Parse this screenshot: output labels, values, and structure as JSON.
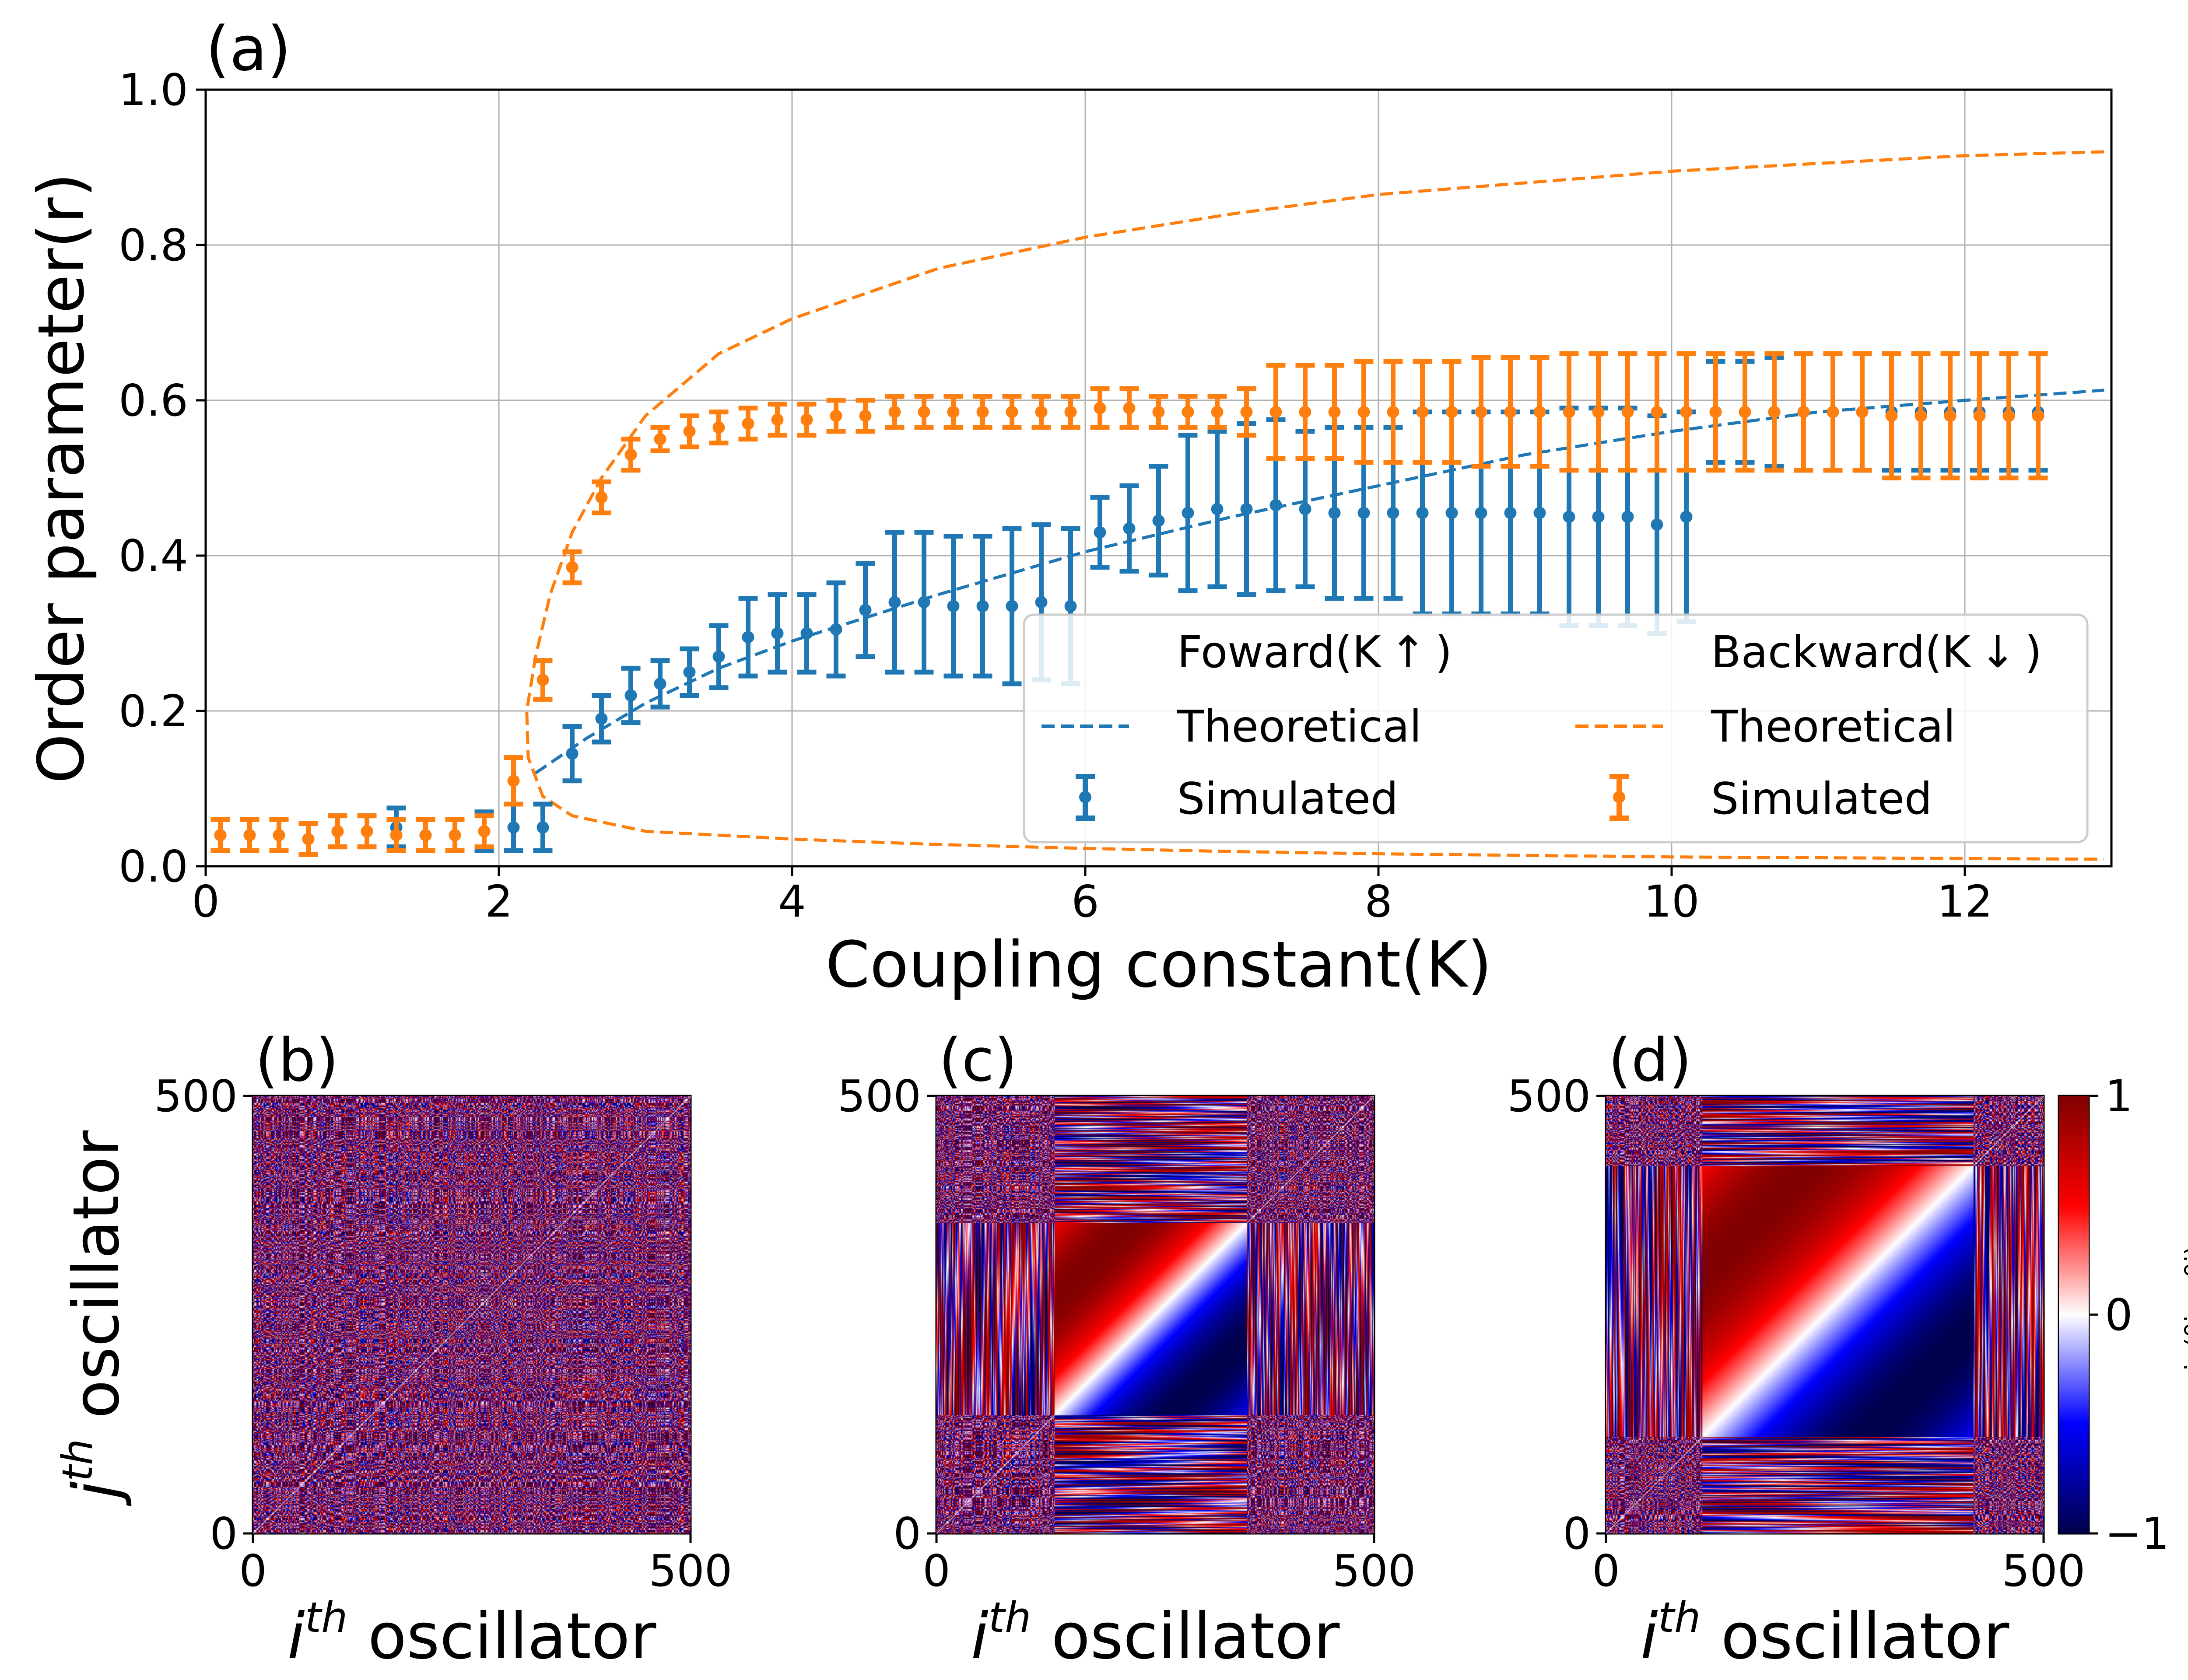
{
  "chart_data": [
    {
      "panel": "(a)",
      "type": "scatter",
      "xlabel": "Coupling constant(K)",
      "ylabel": "Order parameter(r)",
      "xlim": [
        0,
        13
      ],
      "ylim": [
        0.0,
        1.0
      ],
      "xticks": [
        0,
        2,
        4,
        6,
        8,
        10,
        12
      ],
      "yticks": [
        0.0,
        0.2,
        0.4,
        0.6,
        0.8,
        1.0
      ],
      "xtick_labels": [
        "0",
        "2",
        "4",
        "6",
        "8",
        "10",
        "12"
      ],
      "ytick_labels": [
        "0.0",
        "0.2",
        "0.4",
        "0.6",
        "0.8",
        "1.0"
      ],
      "grid": true,
      "legend": {
        "placement": "lower-right",
        "columns": [
          {
            "header": "Foward(K ↑ )",
            "entries": [
              "Theoretical",
              "Simulated"
            ]
          },
          {
            "header": "Backward(K ↓ )",
            "entries": [
              "Theoretical",
              "Simulated"
            ]
          }
        ]
      },
      "colors": {
        "forward": "#1f77b4",
        "backward": "#ff7f0e"
      },
      "theory": {
        "forward": {
          "curve": "r = sqrt(1 - 4.4/K)",
          "K_start": 2.2,
          "style": "dashed"
        },
        "backward": {
          "curve": "r(K) stable and unstable branches",
          "K_saddle": 2.17,
          "style": "dashed"
        }
      },
      "series": [
        {
          "name": "Simulated",
          "group": "forward",
          "x": [
            0.1,
            0.3,
            0.5,
            0.7,
            0.9,
            1.1,
            1.3,
            1.5,
            1.7,
            1.9,
            2.1,
            2.3,
            2.5,
            2.7,
            2.9,
            3.1,
            3.3,
            3.5,
            3.7,
            3.9,
            4.1,
            4.3,
            4.5,
            4.7,
            4.9,
            5.1,
            5.3,
            5.5,
            5.7,
            5.9,
            6.1,
            6.3,
            6.5,
            6.7,
            6.9,
            7.1,
            7.3,
            7.5,
            7.7,
            7.9,
            8.1,
            8.3,
            8.5,
            8.7,
            8.9,
            9.1,
            9.3,
            9.5,
            9.7,
            9.9,
            10.1,
            10.3,
            10.5,
            10.7,
            10.9,
            11.1,
            11.3,
            11.5,
            11.7,
            11.9,
            12.1,
            12.3,
            12.5
          ],
          "y": [
            0.04,
            0.04,
            0.04,
            0.035,
            0.045,
            0.045,
            0.05,
            0.04,
            0.04,
            0.045,
            0.05,
            0.05,
            0.145,
            0.19,
            0.22,
            0.235,
            0.25,
            0.27,
            0.295,
            0.3,
            0.3,
            0.305,
            0.33,
            0.34,
            0.34,
            0.335,
            0.335,
            0.335,
            0.34,
            0.335,
            0.43,
            0.435,
            0.445,
            0.455,
            0.46,
            0.46,
            0.465,
            0.46,
            0.455,
            0.455,
            0.455,
            0.455,
            0.455,
            0.455,
            0.455,
            0.455,
            0.45,
            0.45,
            0.45,
            0.44,
            0.45,
            0.585,
            0.585,
            0.585,
            0.585,
            0.585,
            0.585,
            0.585,
            0.585,
            0.585,
            0.585,
            0.585,
            0.585
          ],
          "err": [
            0.02,
            0.02,
            0.02,
            0.02,
            0.02,
            0.02,
            0.025,
            0.02,
            0.02,
            0.025,
            0.03,
            0.03,
            0.035,
            0.03,
            0.035,
            0.03,
            0.03,
            0.04,
            0.05,
            0.05,
            0.05,
            0.06,
            0.06,
            0.09,
            0.09,
            0.09,
            0.09,
            0.1,
            0.1,
            0.1,
            0.045,
            0.055,
            0.07,
            0.1,
            0.1,
            0.11,
            0.11,
            0.1,
            0.11,
            0.11,
            0.11,
            0.13,
            0.13,
            0.13,
            0.13,
            0.13,
            0.14,
            0.14,
            0.14,
            0.14,
            0.135,
            0.065,
            0.065,
            0.07,
            0.075,
            0.075,
            0.075,
            0.075,
            0.075,
            0.075,
            0.075,
            0.075,
            0.075
          ]
        },
        {
          "name": "Simulated",
          "group": "backward",
          "x": [
            0.1,
            0.3,
            0.5,
            0.7,
            0.9,
            1.1,
            1.3,
            1.5,
            1.7,
            1.9,
            2.1,
            2.3,
            2.5,
            2.7,
            2.9,
            3.1,
            3.3,
            3.5,
            3.7,
            3.9,
            4.1,
            4.3,
            4.5,
            4.7,
            4.9,
            5.1,
            5.3,
            5.5,
            5.7,
            5.9,
            6.1,
            6.3,
            6.5,
            6.7,
            6.9,
            7.1,
            7.3,
            7.5,
            7.7,
            7.9,
            8.1,
            8.3,
            8.5,
            8.7,
            8.9,
            9.1,
            9.3,
            9.5,
            9.7,
            9.9,
            10.1,
            10.3,
            10.5,
            10.7,
            10.9,
            11.1,
            11.3,
            11.5,
            11.7,
            11.9,
            12.1,
            12.3,
            12.5
          ],
          "y": [
            0.04,
            0.04,
            0.04,
            0.035,
            0.045,
            0.045,
            0.04,
            0.04,
            0.04,
            0.045,
            0.11,
            0.24,
            0.385,
            0.475,
            0.53,
            0.55,
            0.56,
            0.565,
            0.57,
            0.575,
            0.575,
            0.58,
            0.58,
            0.585,
            0.585,
            0.585,
            0.585,
            0.585,
            0.585,
            0.585,
            0.59,
            0.59,
            0.585,
            0.585,
            0.585,
            0.585,
            0.585,
            0.585,
            0.585,
            0.585,
            0.585,
            0.585,
            0.585,
            0.585,
            0.585,
            0.585,
            0.585,
            0.585,
            0.585,
            0.585,
            0.585,
            0.585,
            0.585,
            0.585,
            0.585,
            0.585,
            0.585,
            0.58,
            0.58,
            0.58,
            0.58,
            0.58,
            0.58
          ],
          "err": [
            0.02,
            0.02,
            0.02,
            0.02,
            0.02,
            0.02,
            0.02,
            0.02,
            0.02,
            0.02,
            0.03,
            0.025,
            0.02,
            0.02,
            0.02,
            0.015,
            0.02,
            0.02,
            0.02,
            0.02,
            0.02,
            0.02,
            0.02,
            0.02,
            0.02,
            0.02,
            0.02,
            0.02,
            0.02,
            0.02,
            0.025,
            0.025,
            0.02,
            0.02,
            0.02,
            0.03,
            0.06,
            0.06,
            0.06,
            0.065,
            0.065,
            0.065,
            0.065,
            0.07,
            0.07,
            0.07,
            0.075,
            0.075,
            0.075,
            0.075,
            0.075,
            0.075,
            0.075,
            0.075,
            0.075,
            0.075,
            0.075,
            0.08,
            0.08,
            0.08,
            0.08,
            0.08,
            0.08
          ]
        }
      ]
    },
    {
      "panel": "(b)",
      "type": "heatmap",
      "xlabel": "i^th oscillator",
      "ylabel": "j^th oscillator",
      "xlim": [
        0,
        500
      ],
      "ylim": [
        0,
        500
      ],
      "xtick_labels": [
        "0",
        "500"
      ],
      "ytick_labels": [
        "0",
        "500"
      ],
      "pattern": "incoherent"
    },
    {
      "panel": "(c)",
      "type": "heatmap",
      "xlabel": "i^th oscillator",
      "ylabel": "",
      "xlim": [
        0,
        500
      ],
      "ylim": [
        0,
        500
      ],
      "xtick_labels": [
        "0",
        "500"
      ],
      "ytick_labels": [
        "0",
        "500"
      ],
      "pattern": "partial-sync",
      "sync_block": [
        0.27,
        0.71
      ]
    },
    {
      "panel": "(d)",
      "type": "heatmap",
      "xlabel": "i^th oscillator",
      "ylabel": "",
      "xlim": [
        0,
        500
      ],
      "ylim": [
        0,
        500
      ],
      "xtick_labels": [
        "0",
        "500"
      ],
      "ytick_labels": [
        "0",
        "500"
      ],
      "pattern": "large-sync",
      "sync_block": [
        0.22,
        0.84
      ],
      "colorbar": {
        "label": "sin(θj − θi)",
        "ticks": [
          1,
          0,
          -1
        ],
        "tick_labels": [
          "1",
          "0",
          "−1"
        ],
        "colormap": "seismic"
      }
    }
  ]
}
